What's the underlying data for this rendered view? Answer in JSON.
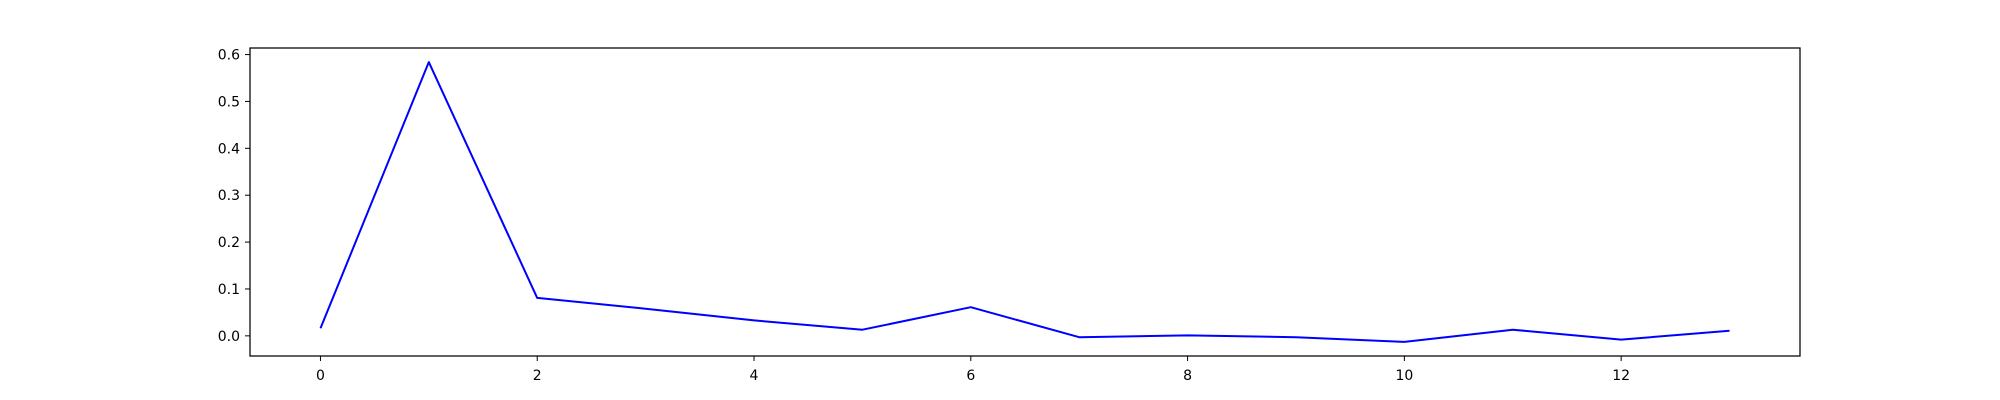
{
  "chart_data": {
    "type": "line",
    "title": "",
    "xlabel": "",
    "ylabel": "",
    "xlim": [
      -0.65,
      13.65
    ],
    "ylim": [
      -0.043,
      0.614
    ],
    "x_ticks": [
      0,
      2,
      4,
      6,
      8,
      10,
      12
    ],
    "y_ticks": [
      0.0,
      0.1,
      0.2,
      0.3,
      0.4,
      0.5,
      0.6
    ],
    "x_tick_labels": [
      "0",
      "2",
      "4",
      "6",
      "8",
      "10",
      "12"
    ],
    "y_tick_labels": [
      "0.0",
      "0.1",
      "0.2",
      "0.3",
      "0.4",
      "0.5",
      "0.6"
    ],
    "grid": false,
    "legend": "none",
    "series": [
      {
        "color": "#0000ff",
        "x": [
          0,
          1,
          2,
          3,
          4,
          5,
          6,
          7,
          8,
          9,
          10,
          11,
          12,
          13
        ],
        "y": [
          0.016,
          0.584,
          0.081,
          0.058,
          0.033,
          0.013,
          0.061,
          -0.003,
          0.001,
          -0.003,
          -0.013,
          0.013,
          -0.008,
          0.011
        ]
      }
    ]
  }
}
